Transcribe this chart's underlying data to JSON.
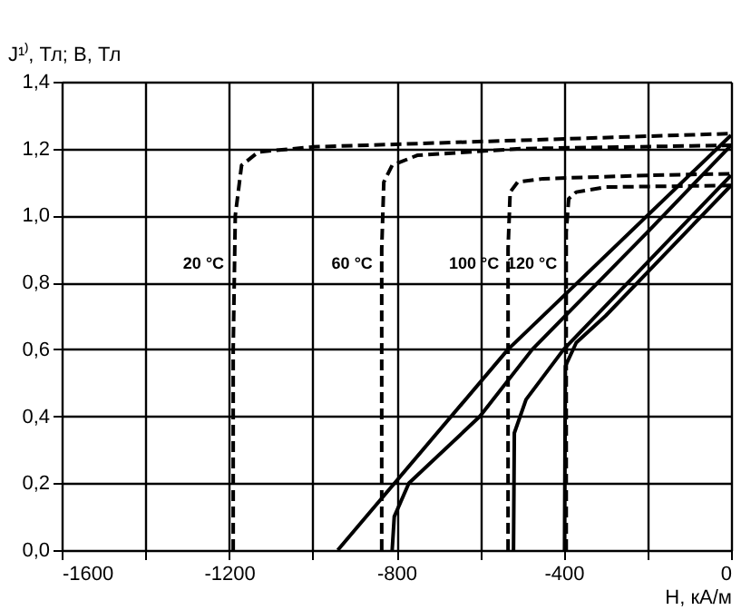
{
  "chart_data": {
    "type": "line",
    "xlabel": "H, кА/м",
    "ylabel": "J¹⁾, Тл; B, Тл",
    "xlim": [
      -1600,
      0
    ],
    "ylim": [
      0,
      1.4
    ],
    "xticks": [
      -1600,
      {
        "value": -1400,
        "label": null
      },
      -1200,
      {
        "value": -1000,
        "label": null
      },
      -800,
      {
        "value": -600,
        "label": null
      },
      -400,
      {
        "value": -200,
        "label": null
      },
      0
    ],
    "yticks": [
      {
        "value": 0,
        "label": "0,0"
      },
      {
        "value": 0.2,
        "label": "0,2"
      },
      {
        "value": 0.4,
        "label": "0,4"
      },
      {
        "value": 0.6,
        "label": "0,6"
      },
      {
        "value": 0.8,
        "label": "0,8"
      },
      {
        "value": 1.0,
        "label": "1,0"
      },
      {
        "value": 1.2,
        "label": "1,2"
      },
      {
        "value": 1.4,
        "label": "1,4"
      }
    ],
    "grid": true,
    "marker": "none",
    "series": [
      {
        "color": "#000000",
        "line_style": "dashed",
        "x": [
          -1190,
          -1190,
          -1185,
          -1170,
          -1130,
          -1000,
          -500,
          0
        ],
        "values": [
          0,
          0.6,
          1.0,
          1.15,
          1.19,
          1.205,
          1.225,
          1.245
        ]
      },
      {
        "color": "#000000",
        "line_style": "dashed",
        "x": [
          -835,
          -835,
          -830,
          -810,
          -750,
          -500,
          0
        ],
        "values": [
          0,
          0.9,
          1.1,
          1.15,
          1.18,
          1.2,
          1.21
        ]
      },
      {
        "color": "#000000",
        "line_style": "dashed",
        "x": [
          -533,
          -533,
          -528,
          -510,
          -450,
          -200,
          0
        ],
        "values": [
          0,
          0.9,
          1.07,
          1.1,
          1.11,
          1.12,
          1.125
        ]
      },
      {
        "color": "#000000",
        "line_style": "dashed",
        "x": [
          -394,
          -394,
          -388,
          -370,
          -300,
          0
        ],
        "values": [
          0,
          0.95,
          1.05,
          1.07,
          1.085,
          1.09
        ]
      },
      {
        "color": "#000000",
        "line_style": "solid",
        "x": [
          -940,
          -533,
          0
        ],
        "values": [
          0,
          0.6,
          1.24
        ]
      },
      {
        "color": "#000000",
        "line_style": "solid",
        "x": [
          -810,
          -805,
          -770,
          -600,
          -475,
          -200,
          0
        ],
        "values": [
          0,
          0.1,
          0.2,
          0.4,
          0.6,
          0.95,
          1.21
        ]
      },
      {
        "color": "#000000",
        "line_style": "solid",
        "x": [
          -520,
          -518,
          -490,
          -400,
          -200,
          0
        ],
        "values": [
          0,
          0.35,
          0.45,
          0.6,
          0.86,
          1.12
        ]
      },
      {
        "color": "#000000",
        "line_style": "solid",
        "x": [
          -398,
          -396,
          -370,
          -300,
          -200,
          0
        ],
        "values": [
          0,
          0.55,
          0.62,
          0.7,
          0.83,
          1.09
        ]
      }
    ],
    "annotations": [
      "20 °C",
      "60 °C",
      "100 °C",
      "120 °C"
    ]
  }
}
